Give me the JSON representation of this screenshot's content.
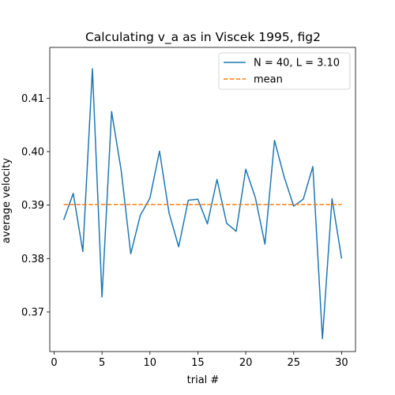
{
  "chart_data": {
    "type": "line",
    "title": "Calculating v_a as in Viscek 1995, fig2",
    "xlabel": "trial #",
    "ylabel": "average velocity",
    "xlim": [
      -0.45,
      31.45
    ],
    "ylim": [
      0.3626,
      0.4195
    ],
    "xticks": [
      0,
      5,
      10,
      15,
      20,
      25,
      30
    ],
    "yticks": [
      0.37,
      0.38,
      0.39,
      0.4,
      0.41
    ],
    "grid": false,
    "legend": "upper right",
    "series": [
      {
        "name": "N = 40, L = 3.10",
        "color": "#1f77b4",
        "style": "solid",
        "x": [
          1,
          2,
          3,
          4,
          5,
          6,
          7,
          8,
          9,
          10,
          11,
          12,
          13,
          14,
          15,
          16,
          17,
          18,
          19,
          20,
          21,
          22,
          23,
          24,
          25,
          26,
          27,
          28,
          29,
          30
        ],
        "values": [
          0.3872,
          0.3922,
          0.3813,
          0.4155,
          0.3728,
          0.4075,
          0.3965,
          0.3809,
          0.3881,
          0.3913,
          0.4001,
          0.3885,
          0.3822,
          0.3909,
          0.3911,
          0.3865,
          0.3948,
          0.3866,
          0.3851,
          0.3967,
          0.3914,
          0.3827,
          0.4021,
          0.3953,
          0.3898,
          0.3911,
          0.3972,
          0.365,
          0.3912,
          0.38
        ]
      },
      {
        "name": "mean",
        "color": "#ff7f0e",
        "style": "dashed",
        "x": [
          1,
          30
        ],
        "values": [
          0.3901,
          0.3901
        ]
      }
    ]
  }
}
